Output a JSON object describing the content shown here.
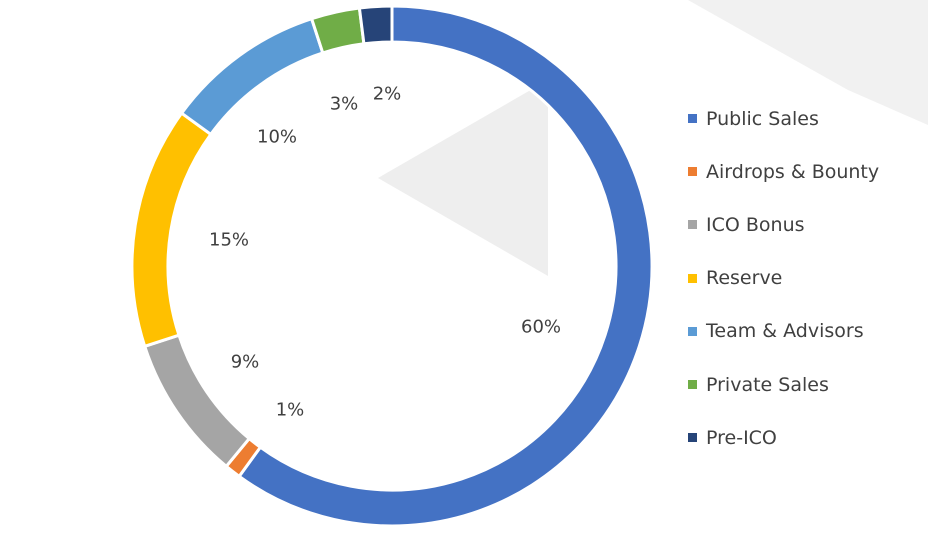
{
  "chart_data": {
    "type": "pie",
    "variant": "donut",
    "title": "",
    "legend_position": "right",
    "series": [
      {
        "name": "Public Sales",
        "value": 60,
        "label": "60%",
        "color": "#4472C4"
      },
      {
        "name": "Airdrops & Bounty",
        "value": 1,
        "label": "1%",
        "color": "#ED7D31"
      },
      {
        "name": "ICO Bonus",
        "value": 9,
        "label": "9%",
        "color": "#A5A5A5"
      },
      {
        "name": "Reserve",
        "value": 15,
        "label": "15%",
        "color": "#FFC000"
      },
      {
        "name": "Team & Advisors",
        "value": 10,
        "label": "10%",
        "color": "#5B9BD5"
      },
      {
        "name": "Private Sales",
        "value": 3,
        "label": "3%",
        "color": "#70AD47"
      },
      {
        "name": "Pre-ICO",
        "value": 2,
        "label": "2%",
        "color": "#264478"
      }
    ]
  }
}
